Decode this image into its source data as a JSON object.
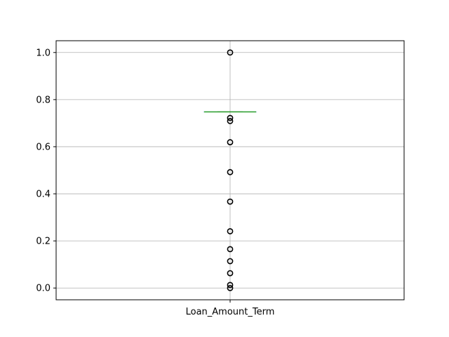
{
  "chart_data": {
    "type": "box",
    "title": "",
    "xlabel": "",
    "ylabel": "",
    "categories": [
      "Loan_Amount_Term"
    ],
    "ylim": [
      -0.05,
      1.05
    ],
    "yticks": [
      0.0,
      0.2,
      0.4,
      0.6,
      0.8,
      1.0
    ],
    "ytick_labels": [
      "0.0",
      "0.2",
      "0.4",
      "0.6",
      "0.8",
      "1.0"
    ],
    "grid": true,
    "box": {
      "q1": 0.7478,
      "median": 0.7478,
      "q3": 0.7478,
      "whisker_low": 0.7478,
      "whisker_high": 0.7478
    },
    "outliers": [
      1.0,
      0.722,
      0.709,
      0.619,
      0.492,
      0.367,
      0.241,
      0.165,
      0.114,
      0.063,
      0.013,
      0.0
    ],
    "colors": {
      "median": "#2ca02c",
      "box": "#1f77b4",
      "outlier": "#000000",
      "grid": "#b0b0b0",
      "axis": "#000000"
    }
  }
}
